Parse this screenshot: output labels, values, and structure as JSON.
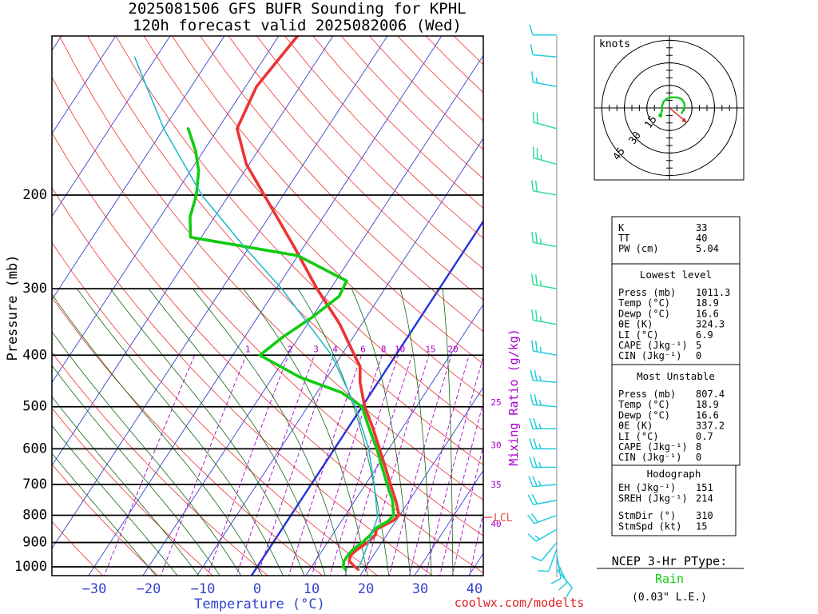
{
  "title": {
    "line1": "2025081506 GFS BUFR Sounding for KPHL",
    "line2": "120h forecast valid 2025082006 (Wed)"
  },
  "footer": {
    "source": "coolwx.com/modelts"
  },
  "colors": {
    "temperature": "#ee3333",
    "dewpoint": "#11cc11",
    "parcel": "#22bbcc",
    "isotherm": "#3344cc",
    "dry_adiabat": "#ee3333",
    "moist_adiabat": "#116611",
    "mixing_ratio": "#aa00cc",
    "freezing_isotherm": "#2233dd",
    "wind_barb_upper": "#22ccdd",
    "wind_barb_mid": "#33dd99",
    "ptype_rain": "#11cc11"
  },
  "chart_data": {
    "type": "line",
    "subtype": "skew-t log-p sounding",
    "xlabel": "Temperature (°C)",
    "ylabel": "Pressure (mb)",
    "xlim": [
      -38,
      42
    ],
    "ylim_mb": [
      1050,
      100
    ],
    "x_ticks": [
      "−30",
      "−20",
      "−10",
      "0",
      "10",
      "20",
      "30",
      "40"
    ],
    "x_tick_values": [
      -30,
      -20,
      -10,
      0,
      10,
      20,
      30,
      40
    ],
    "y_ticks": [
      "200",
      "300",
      "400",
      "500",
      "600",
      "700",
      "800",
      "900",
      "1000"
    ],
    "y_tick_values": [
      200,
      300,
      400,
      500,
      600,
      700,
      800,
      900,
      1000
    ],
    "mixing_ratio_label": "Mixing Ratio (g/kg)",
    "mixing_ratio_top_labels": [
      "1",
      "2",
      "3",
      "4",
      "6",
      "8",
      "10",
      "15",
      "20"
    ],
    "mixing_ratio_top_values": [
      1,
      2,
      3,
      4,
      6,
      8,
      10,
      15,
      20
    ],
    "mixing_ratio_side_labels": [
      {
        "text": "25",
        "p": 490
      },
      {
        "text": "30",
        "p": 590
      },
      {
        "text": "35",
        "p": 700
      },
      {
        "text": "40",
        "p": 830
      }
    ],
    "lcl_label": "LCL",
    "lcl_p": 807,
    "series": [
      {
        "name": "Temperature",
        "points": [
          [
            1011,
            18.9
          ],
          [
            1000,
            18.0
          ],
          [
            975,
            16.2
          ],
          [
            950,
            15.8
          ],
          [
            925,
            16.4
          ],
          [
            900,
            17.4
          ],
          [
            870,
            17.9
          ],
          [
            850,
            17.4
          ],
          [
            820,
            19.4
          ],
          [
            800,
            19.9
          ],
          [
            750,
            17.5
          ],
          [
            700,
            14.6
          ],
          [
            650,
            11.6
          ],
          [
            600,
            8.3
          ],
          [
            550,
            4.7
          ],
          [
            500,
            0.5
          ],
          [
            450,
            -3.3
          ],
          [
            420,
            -5.2
          ],
          [
            400,
            -7.6
          ],
          [
            350,
            -14.0
          ],
          [
            300,
            -22.5
          ],
          [
            250,
            -31.8
          ],
          [
            200,
            -43.5
          ],
          [
            175,
            -50.5
          ],
          [
            150,
            -56.5
          ],
          [
            125,
            -58.0
          ],
          [
            100,
            -56.5
          ]
        ]
      },
      {
        "name": "Dewpoint",
        "points": [
          [
            1011,
            16.6
          ],
          [
            1000,
            15.8
          ],
          [
            975,
            15.3
          ],
          [
            950,
            15.3
          ],
          [
            925,
            15.6
          ],
          [
            900,
            16.4
          ],
          [
            870,
            17.0
          ],
          [
            850,
            17.0
          ],
          [
            820,
            18.6
          ],
          [
            800,
            18.9
          ],
          [
            750,
            16.9
          ],
          [
            700,
            14.0
          ],
          [
            650,
            11.0
          ],
          [
            600,
            7.8
          ],
          [
            550,
            4.0
          ],
          [
            500,
            0.0
          ],
          [
            470,
            -5.5
          ],
          [
            440,
            -15.0
          ],
          [
            400,
            -25.0
          ],
          [
            370,
            -23.0
          ],
          [
            340,
            -20.0
          ],
          [
            310,
            -17.5
          ],
          [
            290,
            -18.0
          ],
          [
            260,
            -30.0
          ],
          [
            240,
            -52.0
          ],
          [
            220,
            -54.5
          ],
          [
            200,
            -56.0
          ],
          [
            180,
            -58.5
          ],
          [
            165,
            -61.5
          ],
          [
            150,
            -65.5
          ]
        ]
      },
      {
        "name": "Parcel",
        "points": [
          [
            1011,
            18.9
          ],
          [
            900,
            17.6
          ],
          [
            807,
            16.2
          ],
          [
            700,
            11.6
          ],
          [
            600,
            6.3
          ],
          [
            500,
            -1.2
          ],
          [
            400,
            -11.8
          ],
          [
            300,
            -29.0
          ],
          [
            250,
            -41.0
          ],
          [
            200,
            -55.0
          ],
          [
            150,
            -70.0
          ],
          [
            110,
            -84.0
          ]
        ]
      }
    ],
    "wind_profile_kt": [
      {
        "p": 1011,
        "dir": 140,
        "spd": 10
      },
      {
        "p": 975,
        "dir": 155,
        "spd": 10
      },
      {
        "p": 950,
        "dir": 170,
        "spd": 10
      },
      {
        "p": 925,
        "dir": 200,
        "spd": 10
      },
      {
        "p": 900,
        "dir": 220,
        "spd": 10
      },
      {
        "p": 850,
        "dir": 240,
        "spd": 15
      },
      {
        "p": 800,
        "dir": 250,
        "spd": 20
      },
      {
        "p": 750,
        "dir": 260,
        "spd": 20
      },
      {
        "p": 700,
        "dir": 265,
        "spd": 25
      },
      {
        "p": 650,
        "dir": 270,
        "spd": 25
      },
      {
        "p": 600,
        "dir": 270,
        "spd": 25
      },
      {
        "p": 550,
        "dir": 270,
        "spd": 25
      },
      {
        "p": 500,
        "dir": 275,
        "spd": 25
      },
      {
        "p": 450,
        "dir": 275,
        "spd": 25
      },
      {
        "p": 400,
        "dir": 280,
        "spd": 25
      },
      {
        "p": 350,
        "dir": 280,
        "spd": 25
      },
      {
        "p": 300,
        "dir": 280,
        "spd": 25
      },
      {
        "p": 250,
        "dir": 280,
        "spd": 25
      },
      {
        "p": 200,
        "dir": 280,
        "spd": 20
      },
      {
        "p": 175,
        "dir": 285,
        "spd": 25
      },
      {
        "p": 150,
        "dir": 285,
        "spd": 20
      },
      {
        "p": 125,
        "dir": 280,
        "spd": 15
      },
      {
        "p": 110,
        "dir": 275,
        "spd": 10
      },
      {
        "p": 100,
        "dir": 270,
        "spd": 10
      }
    ],
    "hodograph": {
      "units_label": "knots",
      "rings_kt": [
        15,
        30,
        45
      ],
      "ring_labels": [
        "15",
        "30",
        "45"
      ],
      "trace_uv_kt": [
        [
          -6,
          -5
        ],
        [
          -5,
          -2
        ],
        [
          -5,
          1
        ],
        [
          -4,
          4
        ],
        [
          -2,
          6
        ],
        [
          1,
          7
        ],
        [
          5,
          7
        ],
        [
          8,
          6
        ],
        [
          10,
          3
        ],
        [
          10,
          0
        ],
        [
          9,
          -2
        ],
        [
          8,
          -4
        ]
      ],
      "storm_motion_uv_kt": [
        11.5,
        -9.6
      ]
    }
  },
  "indices": {
    "summary": [
      {
        "label": "K",
        "value": "33"
      },
      {
        "label": "TT",
        "value": "40"
      },
      {
        "label": "PW (cm)",
        "value": "5.04"
      }
    ],
    "lowest_level": {
      "header": "Lowest level",
      "rows": [
        {
          "label": "Press (mb)",
          "value": "1011.3"
        },
        {
          "label": "Temp (°C)",
          "value": "18.9"
        },
        {
          "label": "Dewp (°C)",
          "value": "16.6"
        },
        {
          "label": "θE (K)",
          "value": "324.3"
        },
        {
          "label": "LI (°C)",
          "value": "6.9"
        },
        {
          "label": "CAPE (Jkg⁻¹)",
          "value": "5"
        },
        {
          "label": "CIN (Jkg⁻¹)",
          "value": "0"
        }
      ]
    },
    "most_unstable": {
      "header": "Most Unstable",
      "rows": [
        {
          "label": "Press (mb)",
          "value": "807.4"
        },
        {
          "label": "Temp (°C)",
          "value": "18.9"
        },
        {
          "label": "Dewp (°C)",
          "value": "16.6"
        },
        {
          "label": "θE (K)",
          "value": "337.2"
        },
        {
          "label": "LI (°C)",
          "value": "0.7"
        },
        {
          "label": "CAPE (Jkg⁻¹)",
          "value": "8"
        },
        {
          "label": "CIN (Jkg⁻¹)",
          "value": "0"
        }
      ]
    },
    "hodograph_box": {
      "header": "Hodograph",
      "rows": [
        {
          "label": "EH (Jkg⁻¹)",
          "value": "151"
        },
        {
          "label": "SREH (Jkg⁻¹)",
          "value": "214"
        },
        {
          "label": "StmDir (°)",
          "value": "310"
        },
        {
          "label": "StmSpd (kt)",
          "value": "15"
        }
      ]
    }
  },
  "ptype": {
    "title": "NCEP 3-Hr PType:",
    "value": "Rain",
    "precip": "(0.03\" L.E.)"
  }
}
